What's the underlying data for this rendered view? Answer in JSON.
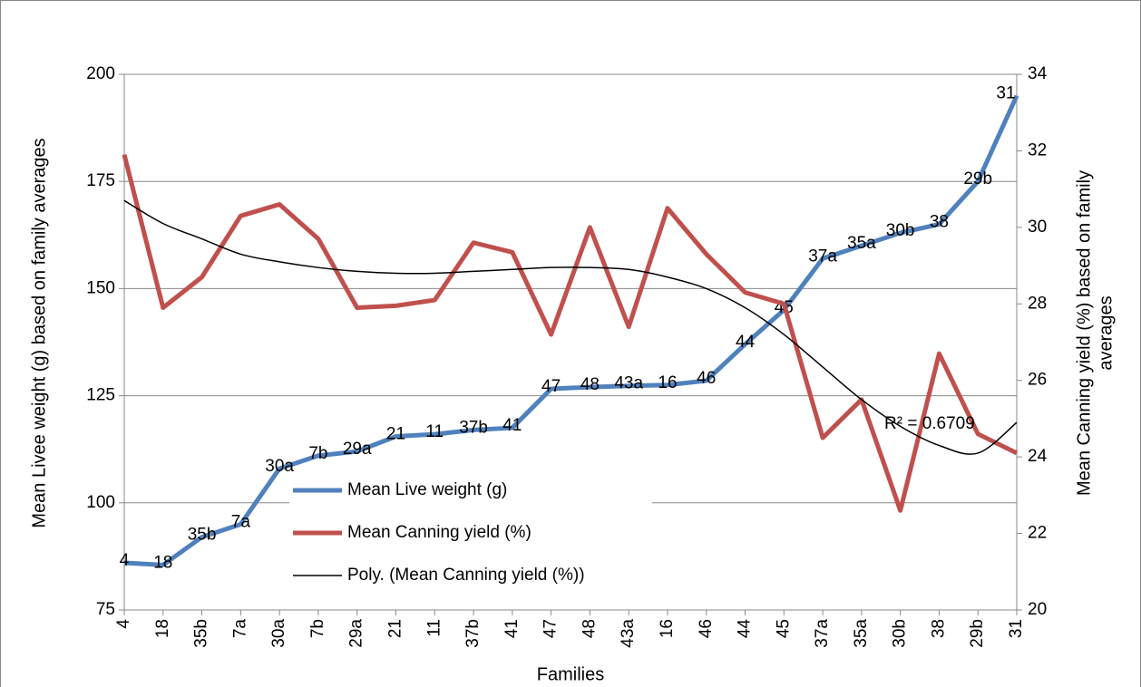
{
  "chart_data": {
    "type": "line",
    "xlabel": "Families",
    "ylabel": "Mean Livee weight (g) based on family averages",
    "y2label": [
      "Mean Canning yield (%) based on family",
      "averages"
    ],
    "categories": [
      "4",
      "18",
      "35b",
      "7a",
      "30a",
      "7b",
      "29a",
      "21",
      "11",
      "37b",
      "41",
      "47",
      "48",
      "43a",
      "16",
      "46",
      "44",
      "45",
      "37a",
      "35a",
      "30b",
      "38",
      "29b",
      "31"
    ],
    "series": [
      {
        "name": "Mean Live weight (g)",
        "color": "#4f81bd",
        "axis": "y",
        "data_labels": true,
        "values": [
          86,
          85.5,
          92,
          95,
          108,
          111,
          112,
          115.5,
          116,
          117,
          117.5,
          126.6,
          127,
          127.3,
          127.5,
          128.5,
          137,
          145,
          157,
          160,
          163,
          165,
          175,
          195
        ]
      },
      {
        "name": "Mean Canning yield (%)",
        "color": "#c0504d",
        "axis": "y2",
        "values": [
          31.9,
          27.9,
          28.7,
          30.3,
          30.6,
          29.7,
          27.9,
          27.95,
          28.1,
          29.6,
          29.35,
          27.2,
          30.0,
          27.4,
          30.5,
          29.3,
          28.3,
          28.0,
          24.5,
          25.5,
          22.6,
          26.7,
          24.6,
          24.1
        ]
      },
      {
        "name": "Poly. (Mean Canning yield (%))",
        "color": "#000000",
        "axis": "y2",
        "thin": true,
        "values": [
          30.7,
          30.1,
          29.7,
          29.3,
          29.1,
          28.95,
          28.85,
          28.8,
          28.8,
          28.85,
          28.9,
          28.95,
          28.95,
          28.9,
          28.7,
          28.4,
          27.9,
          27.2,
          26.35,
          25.5,
          24.8,
          24.3,
          24.1,
          24.9
        ]
      }
    ],
    "annotation": "R² = 0.6709",
    "ylim": [
      75,
      200
    ],
    "yticks": [
      75,
      100,
      125,
      150,
      175,
      200
    ],
    "y2lim": [
      20,
      34
    ],
    "y2ticks": [
      20,
      22,
      24,
      26,
      28,
      30,
      32,
      34
    ],
    "grid": true,
    "legend": "center"
  }
}
